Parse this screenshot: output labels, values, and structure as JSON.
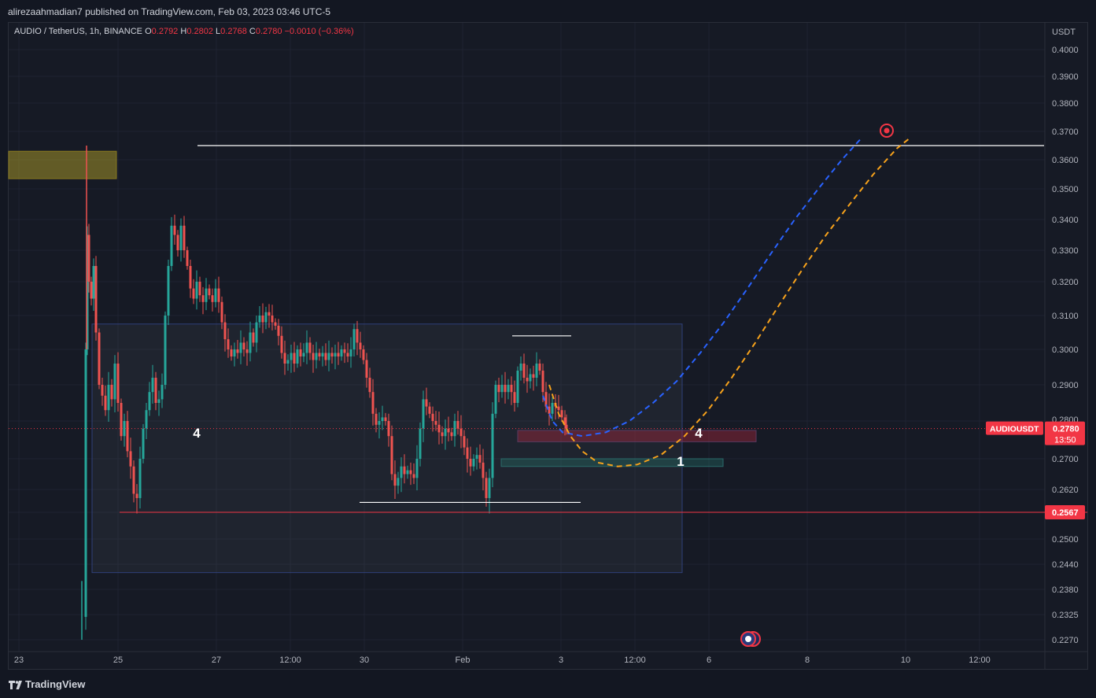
{
  "header": {
    "published": "alirezaahmadian7 published on TradingView.com, Feb 03, 2023 03:46 UTC-5"
  },
  "legend": {
    "symbol": "AUDIO / TetherUS, 1h, BINANCE",
    "o_label": "O",
    "o_value": "0.2792",
    "h_label": "H",
    "h_value": "0.2802",
    "l_label": "L",
    "l_value": "0.2768",
    "c_label": "C",
    "c_value": "0.2780",
    "change": "−0.0010 (−0.36%)"
  },
  "footer": {
    "brand": "TradingView"
  },
  "colors": {
    "up": "#26a69a",
    "down": "#ef5350",
    "background": "#161a25",
    "blue_path": "#2962ff",
    "orange_path": "#f7a21b",
    "price_tag": "#f23645"
  },
  "chart_data": {
    "type": "candlestick",
    "symbol": "AUDIOUSDT",
    "currency_label": "USDT",
    "y_ticks": [
      "0.4000",
      "0.3900",
      "0.3800",
      "0.3700",
      "0.3600",
      "0.3500",
      "0.3400",
      "0.3300",
      "0.3200",
      "0.3100",
      "0.3000",
      "0.2900",
      "0.2800",
      "0.2700",
      "0.2620",
      "0.2567",
      "0.2500",
      "0.2440",
      "0.2380",
      "0.2325",
      "0.2270"
    ],
    "x_ticks": [
      "23",
      "25",
      "27",
      "12:00",
      "30",
      "Feb",
      "3",
      "12:00",
      "6",
      "8",
      "10",
      "12:00"
    ],
    "last_price": {
      "value": "0.2780",
      "label": "AUDIOUSDT",
      "countdown": "13:50"
    },
    "support_line": {
      "value": "0.2567"
    },
    "resistance_level": 0.365,
    "target_level": 0.37,
    "wave_labels": [
      {
        "text": "4",
        "price": 0.2765
      },
      {
        "text": "4",
        "price": 0.2765
      },
      {
        "text": "1",
        "price": 0.269
      }
    ],
    "zones": [
      {
        "name": "supply-zone",
        "from": 0.3535,
        "to": 0.363
      },
      {
        "name": "range-box",
        "from": 0.242,
        "to": 0.3075
      },
      {
        "name": "red-zone",
        "from": 0.2745,
        "to": 0.2775
      },
      {
        "name": "green-zone",
        "from": 0.268,
        "to": 0.27
      }
    ],
    "key_points": [
      {
        "label": "Jan 24 spike high",
        "price": 0.365
      },
      {
        "label": "Jan 24 low",
        "price": 0.227
      },
      {
        "label": "Jan 26 high",
        "price": 0.348
      },
      {
        "label": "Jan 25 low",
        "price": 0.258
      },
      {
        "label": "Jan 31 low",
        "price": 0.259
      },
      {
        "label": "Feb 1 low",
        "price": 0.2585
      },
      {
        "label": "Feb 2 high",
        "price": 0.304
      },
      {
        "label": "Projected low",
        "price": 0.268
      },
      {
        "label": "Target",
        "price": 0.37
      }
    ]
  }
}
